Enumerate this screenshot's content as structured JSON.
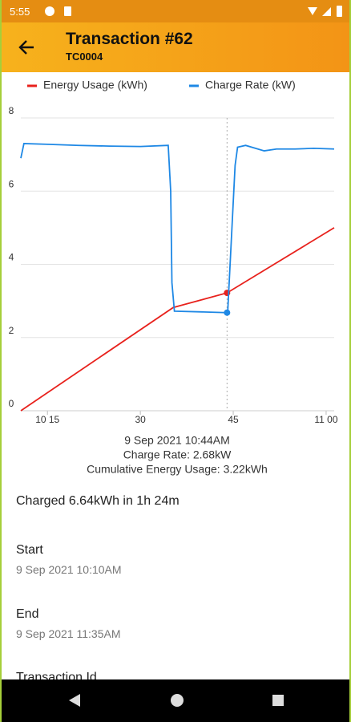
{
  "status_bar": {
    "time": "5:55"
  },
  "app_bar": {
    "title": "Transaction #62",
    "subtitle": "TC0004"
  },
  "chart_data": {
    "type": "line",
    "series": [
      {
        "name": "Energy Usage (kWh)",
        "color": "#e8211c",
        "x": [
          10.7,
          35.3,
          44,
          61.3
        ],
        "values": [
          0,
          2.82,
          3.22,
          5.0
        ]
      },
      {
        "name": "Charge Rate (kW)",
        "color": "#1e88e5",
        "x": [
          10.7,
          11.2,
          15,
          20,
          25,
          30,
          34.5,
          34.9,
          35.1,
          35.5,
          40,
          44,
          44.1,
          45.3,
          45.7,
          47,
          50,
          52,
          55,
          58,
          61.3
        ],
        "values": [
          6.9,
          7.3,
          7.28,
          7.25,
          7.23,
          7.22,
          7.25,
          6.0,
          3.5,
          2.72,
          2.7,
          2.68,
          2.68,
          6.7,
          7.2,
          7.25,
          7.1,
          7.15,
          7.15,
          7.17,
          7.15
        ]
      }
    ],
    "xlim": [
      10.7,
      61.3
    ],
    "xticks": [
      {
        "value": 15,
        "label": "10 15"
      },
      30,
      45,
      {
        "value": 60,
        "label": "11 00"
      }
    ],
    "ylim": [
      0,
      8
    ],
    "yticks": [
      0,
      2,
      4,
      6,
      8
    ],
    "grid": true,
    "highlight_x": 44,
    "tooltip": [
      "9 Sep 2021 10:44AM",
      "Charge Rate: 2.68kW",
      "Cumulative Energy Usage: 3.22kWh"
    ]
  },
  "details": {
    "summary": "Charged 6.64kWh in 1h 24m",
    "fields": [
      {
        "label": "Start",
        "value": "9 Sep 2021 10:10AM"
      },
      {
        "label": "End",
        "value": "9 Sep 2021 11:35AM"
      },
      {
        "label": "Transaction Id"
      }
    ]
  }
}
